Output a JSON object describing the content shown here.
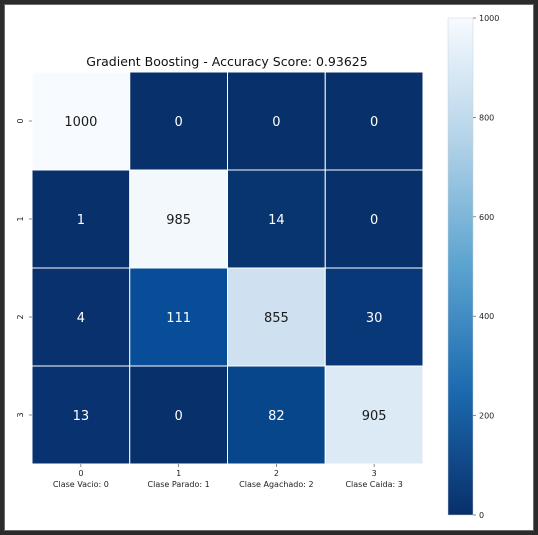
{
  "chart_data": {
    "type": "heatmap",
    "title": "Gradient Boosting - Accuracy Score: 0.93625",
    "xlabel": "",
    "ylabel": "",
    "x_tick_labels": [
      [
        "0",
        "Clase Vacio: 0"
      ],
      [
        "1",
        "Clase Parado: 1"
      ],
      [
        "2",
        "Clase Agachado: 2"
      ],
      [
        "3",
        "Clase Caida: 3"
      ]
    ],
    "y_tick_labels": [
      "0",
      "1",
      "2",
      "3"
    ],
    "matrix": [
      [
        1000,
        0,
        0,
        0
      ],
      [
        1,
        985,
        14,
        0
      ],
      [
        4,
        111,
        855,
        30
      ],
      [
        13,
        0,
        82,
        905
      ]
    ],
    "colormap": "Blues",
    "colorbar": {
      "min": 0,
      "max": 1000,
      "ticks": [
        "0",
        "200",
        "400",
        "600",
        "800",
        "1000"
      ]
    },
    "grid": false
  }
}
